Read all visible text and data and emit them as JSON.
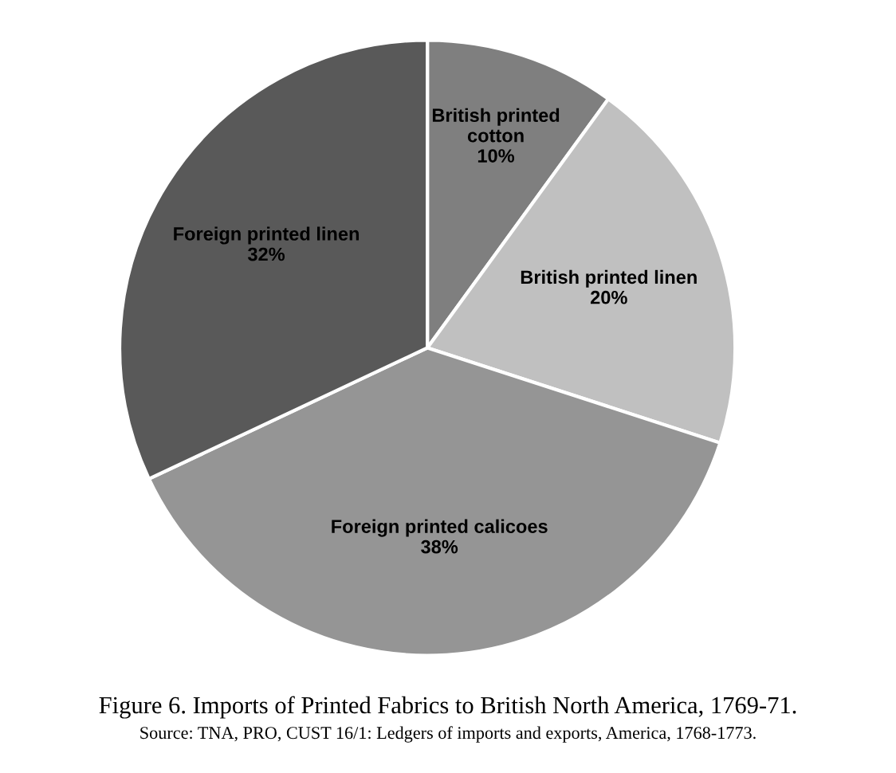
{
  "chart_data": {
    "type": "pie",
    "title": "Figure 6. Imports of Printed Fabrics to British North America, 1769-71.",
    "annotations": [
      "Source: TNA, PRO, CUST 16/1: Ledgers of imports and exports, America, 1768-1773."
    ],
    "categories": [
      "British printed\ncotton",
      "British printed linen",
      "Foreign printed calicoes",
      "Foreign printed linen"
    ],
    "values": [
      10,
      20,
      38,
      32
    ],
    "colors": [
      "#7f7f7f",
      "#c0c0c0",
      "#959595",
      "#595959"
    ],
    "value_labels": [
      "10%",
      "20%",
      "38%",
      "32%"
    ]
  }
}
